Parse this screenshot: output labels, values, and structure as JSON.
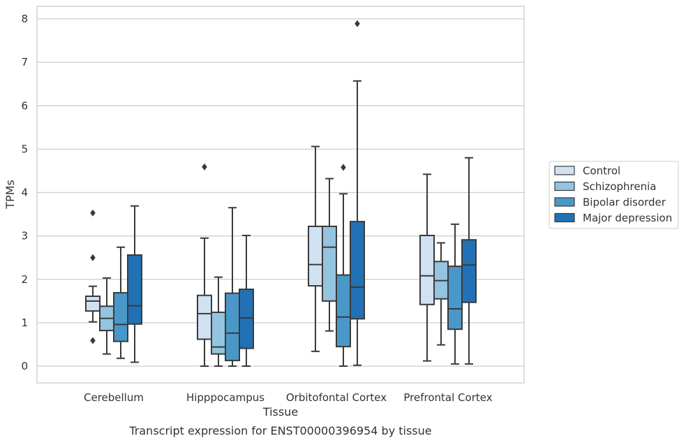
{
  "chart_data": {
    "type": "boxplot",
    "title": "",
    "caption": "Transcript expression for ENST00000396954 by tissue",
    "xlabel": "Tissue",
    "ylabel": "TPMs",
    "ylim": [
      -0.38,
      8.3
    ],
    "yticks": [
      0,
      1,
      2,
      3,
      4,
      5,
      6,
      7,
      8
    ],
    "grid": "horizontal",
    "legend_position": "right",
    "categories": [
      "Cerebellum",
      "Hipppocampus",
      "Orbitofontal Cortex",
      "Prefrontal Cortex"
    ],
    "series": [
      {
        "name": "Control",
        "color": "#d0e1f2",
        "boxes": [
          {
            "whislo": 1.02,
            "q1": 1.27,
            "med": 1.5,
            "q3": 1.61,
            "whishi": 1.84,
            "fliers": [
              3.53,
              2.5,
              0.59
            ]
          },
          {
            "whislo": 0.0,
            "q1": 0.62,
            "med": 1.21,
            "q3": 1.63,
            "whishi": 2.95,
            "fliers": [
              4.59
            ]
          },
          {
            "whislo": 0.34,
            "q1": 1.85,
            "med": 2.34,
            "q3": 3.22,
            "whishi": 5.06,
            "fliers": []
          },
          {
            "whislo": 0.12,
            "q1": 1.42,
            "med": 2.08,
            "q3": 3.01,
            "whishi": 4.42,
            "fliers": []
          }
        ]
      },
      {
        "name": "Schizophrenia",
        "color": "#94c4df",
        "boxes": [
          {
            "whislo": 0.28,
            "q1": 0.82,
            "med": 1.1,
            "q3": 1.38,
            "whishi": 2.03,
            "fliers": []
          },
          {
            "whislo": 0.0,
            "q1": 0.28,
            "med": 0.44,
            "q3": 1.24,
            "whishi": 2.05,
            "fliers": []
          },
          {
            "whislo": 0.81,
            "q1": 1.5,
            "med": 2.74,
            "q3": 3.22,
            "whishi": 4.32,
            "fliers": []
          },
          {
            "whislo": 0.49,
            "q1": 1.55,
            "med": 1.97,
            "q3": 2.41,
            "whishi": 2.84,
            "fliers": []
          }
        ]
      },
      {
        "name": "Bipolar disorder",
        "color": "#4a98c9",
        "boxes": [
          {
            "whislo": 0.18,
            "q1": 0.57,
            "med": 0.96,
            "q3": 1.69,
            "whishi": 2.74,
            "fliers": []
          },
          {
            "whislo": 0.0,
            "q1": 0.13,
            "med": 0.76,
            "q3": 1.68,
            "whishi": 3.65,
            "fliers": []
          },
          {
            "whislo": 0.0,
            "q1": 0.45,
            "med": 1.13,
            "q3": 2.1,
            "whishi": 3.97,
            "fliers": [
              4.58
            ]
          },
          {
            "whislo": 0.05,
            "q1": 0.85,
            "med": 1.32,
            "q3": 2.3,
            "whishi": 3.27,
            "fliers": []
          }
        ]
      },
      {
        "name": "Major depression",
        "color": "#2271b5",
        "boxes": [
          {
            "whislo": 0.09,
            "q1": 0.97,
            "med": 1.39,
            "q3": 2.56,
            "whishi": 3.69,
            "fliers": []
          },
          {
            "whislo": 0.0,
            "q1": 0.41,
            "med": 1.11,
            "q3": 1.77,
            "whishi": 3.01,
            "fliers": []
          },
          {
            "whislo": 0.02,
            "q1": 1.09,
            "med": 1.82,
            "q3": 3.33,
            "whishi": 6.57,
            "fliers": [
              7.89
            ]
          },
          {
            "whislo": 0.05,
            "q1": 1.47,
            "med": 2.33,
            "q3": 2.91,
            "whishi": 4.8,
            "fliers": []
          }
        ]
      }
    ]
  }
}
